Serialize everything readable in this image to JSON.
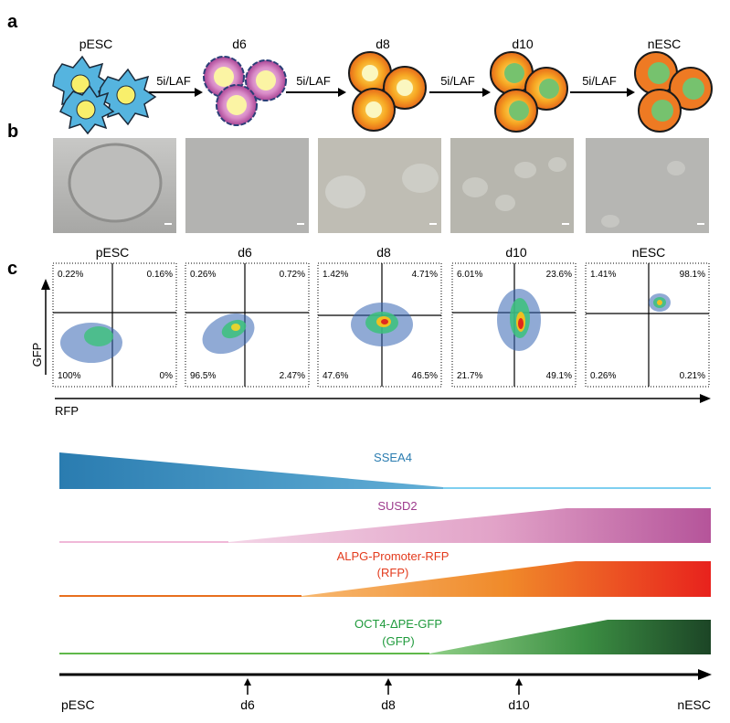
{
  "panel_letters": {
    "a": "a",
    "b": "b",
    "c": "c"
  },
  "stages": [
    "pESC",
    "d6",
    "d8",
    "d10",
    "nESC"
  ],
  "arrow_label": "5i/LAF",
  "flow": {
    "ylabel": "GFP",
    "xlabel": "RFP",
    "plots": [
      {
        "stage": "pESC",
        "ul": "0.22%",
        "ur": "0.16%",
        "ll": "100%",
        "lr": "0%"
      },
      {
        "stage": "d6",
        "ul": "0.26%",
        "ur": "0.72%",
        "ll": "96.5%",
        "lr": "2.47%"
      },
      {
        "stage": "d8",
        "ul": "1.42%",
        "ur": "4.71%",
        "ll": "47.6%",
        "lr": "46.5%"
      },
      {
        "stage": "d10",
        "ul": "6.01%",
        "ur": "23.6%",
        "ll": "21.7%",
        "lr": "49.1%"
      },
      {
        "stage": "nESC",
        "ul": "1.41%",
        "ur": "98.1%",
        "ll": "0.26%",
        "lr": "0.21%"
      }
    ]
  },
  "markers": {
    "ssea4": "SSEA4",
    "susd2": "SUSD2",
    "alpg_line1": "ALPG-Promoter-RFP",
    "alpg_line2": "(RFP)",
    "oct4_line1": "OCT4-ΔPE-GFP",
    "oct4_line2": "(GFP)"
  },
  "timeline": [
    "pESC",
    "d6",
    "d8",
    "d10",
    "nESC"
  ],
  "colors": {
    "ssea4": "#2a7cb0",
    "susd2": "#b5549a",
    "rfp": "#e8221d",
    "gfp": "#1c4526",
    "cell_blue": "#55b4df",
    "cell_purple": "#a03a8e",
    "cell_orange": "#ef7a22",
    "nucleus_yellow": "#f8ef6b",
    "nucleus_green": "#76c26e"
  }
}
